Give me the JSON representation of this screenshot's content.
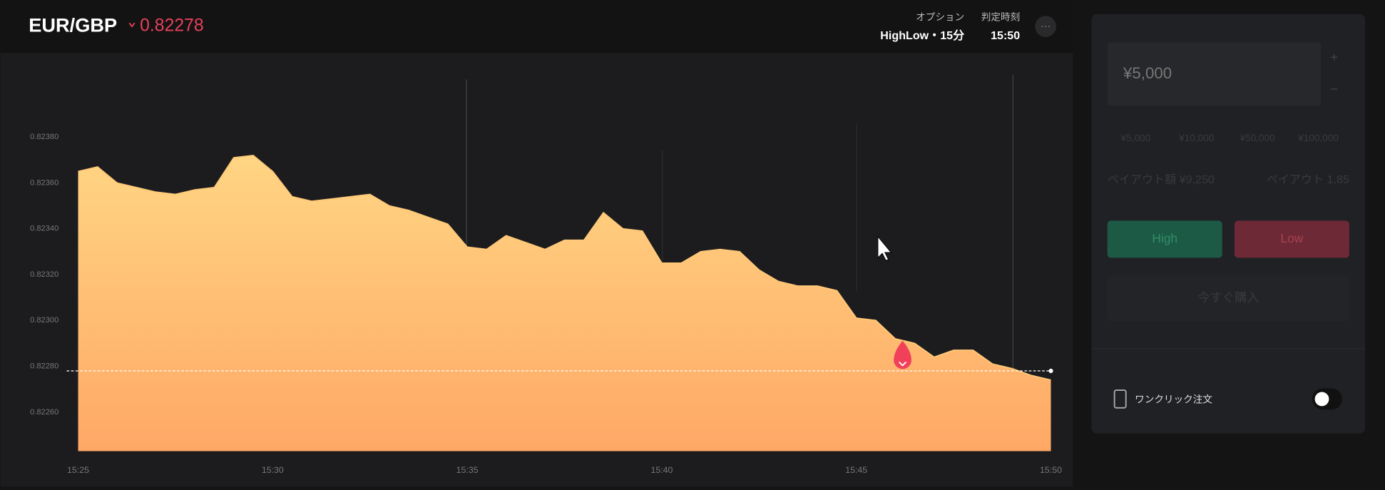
{
  "header": {
    "pair": "EUR/GBP",
    "option_label": "オプション",
    "option_value": "HighLow・15分",
    "expiry_label": "判定時刻",
    "expiry_value": "15:50"
  },
  "chart_data": {
    "type": "area",
    "price": 0.82278,
    "color": "#ffc878",
    "categories": [
      "15:25",
      null,
      null,
      null,
      null,
      null,
      null,
      null,
      null,
      null,
      "15:30",
      null,
      null,
      null,
      null,
      null,
      null,
      null,
      null,
      null,
      "15:35",
      null,
      null,
      null,
      null,
      null,
      null,
      null,
      null,
      null,
      "15:40",
      null,
      null,
      null,
      null,
      null,
      null,
      null,
      null,
      null,
      "15:45",
      null,
      null,
      null,
      null,
      null,
      null,
      null,
      null,
      null,
      "15:50"
    ],
    "values": [
      0.82365,
      0.82367,
      0.8236,
      0.82358,
      0.82356,
      0.82355,
      0.82357,
      0.82358,
      0.82371,
      0.82372,
      0.82365,
      0.82354,
      0.82352,
      0.82353,
      0.82354,
      0.82355,
      0.8235,
      0.82348,
      0.82345,
      0.82342,
      0.82332,
      0.82331,
      0.82337,
      0.82334,
      0.82331,
      0.82335,
      0.82335,
      0.82347,
      0.8234,
      0.82339,
      0.82325,
      0.82325,
      0.8233,
      0.82331,
      0.8233,
      0.82322,
      0.82317,
      0.82315,
      0.82315,
      0.82313,
      0.82301,
      0.823,
      0.82292,
      0.8229,
      0.82284,
      0.82287,
      0.82287,
      0.82281,
      0.82279,
      0.82276,
      0.82274
    ],
    "ylim": [
      0.82243,
      0.82409
    ],
    "yticks": [
      {
        "value": 0.8226,
        "label": "0.82260"
      },
      {
        "value": 0.8228,
        "label": "0.82280"
      },
      {
        "value": 0.823,
        "label": "0.82300"
      },
      {
        "value": 0.8232,
        "label": "0.82320"
      },
      {
        "value": 0.8234,
        "label": "0.82340"
      },
      {
        "value": 0.8236,
        "label": "0.82360"
      },
      {
        "value": 0.8238,
        "label": "0.82380"
      }
    ]
  },
  "panel": {
    "amount": "¥5,000",
    "plus": "+",
    "minus": "−",
    "quick_amounts": [
      "¥5,000",
      "¥10,000",
      "¥50,000",
      "¥100,000"
    ],
    "payout_amount": "ペイアウト額 ¥9,250",
    "payout_rate": "ペイアウト 1.85",
    "high": "High",
    "low": "Low",
    "buy_now": "今すぐ購入",
    "one_click": "ワンクリック注文"
  }
}
